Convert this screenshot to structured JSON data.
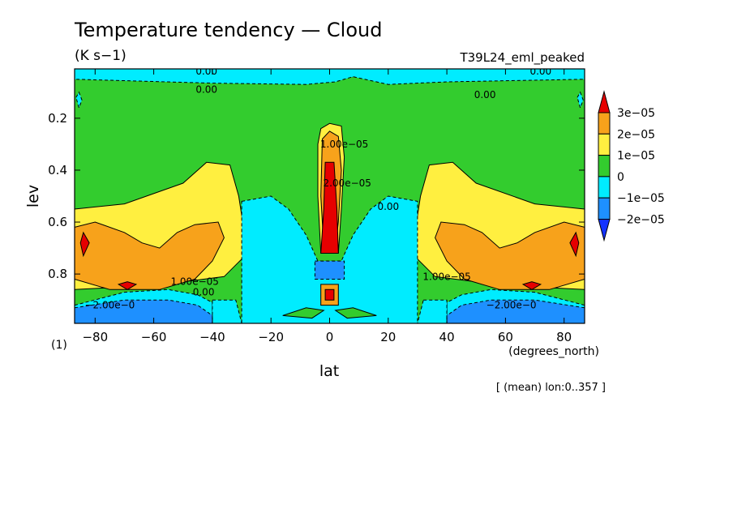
{
  "chart_data": {
    "type": "heatmap",
    "title": "Temperature tendency — Cloud",
    "units": "(K s−1)",
    "experiment": "T39L24_eml_peaked",
    "xlabel": "lat",
    "ylabel": "lev",
    "x_units": "(degrees_north)",
    "y_units": "(1)",
    "footnote": "[ (mean) lon:0..357 ]",
    "xlim": [
      -87,
      87
    ],
    "ylim": [
      0.01,
      0.99
    ],
    "y_inverted": true,
    "grid": false,
    "legend_position": "right",
    "x_ticks": [
      {
        "value": -80,
        "label": "−80"
      },
      {
        "value": -60,
        "label": "−60"
      },
      {
        "value": -40,
        "label": "−40"
      },
      {
        "value": -20,
        "label": "−20"
      },
      {
        "value": 0,
        "label": "0"
      },
      {
        "value": 20,
        "label": "20"
      },
      {
        "value": 40,
        "label": "40"
      },
      {
        "value": 60,
        "label": "60"
      },
      {
        "value": 80,
        "label": "80"
      }
    ],
    "y_ticks": [
      {
        "value": 0.2,
        "label": "0.2"
      },
      {
        "value": 0.4,
        "label": "0.4"
      },
      {
        "value": 0.6,
        "label": "0.6"
      },
      {
        "value": 0.8,
        "label": "0.8"
      }
    ],
    "levels": [
      {
        "label": "3e−05",
        "color": "#e60000"
      },
      {
        "label": "2e−05",
        "color": "#f7a21b"
      },
      {
        "label": "1e−05",
        "color": "#ffef40"
      },
      {
        "label": "0",
        "color": "#33cc2e"
      },
      {
        "label": "−1e−05",
        "color": "#00ecff"
      },
      {
        "label": "−2e−05",
        "color": "#1e90ff"
      }
    ],
    "legend_colors": [
      "#e60000",
      "#f7a21b",
      "#ffef40",
      "#33cc2e",
      "#00ecff",
      "#1e90ff",
      "#1433ff"
    ],
    "contour_labels": [
      {
        "text": "0.00",
        "lat": -42,
        "lev": 0.02
      },
      {
        "text": "0.00",
        "lat": 72,
        "lev": 0.02
      },
      {
        "text": "0.00",
        "lat": -42,
        "lev": 0.09
      },
      {
        "text": "0.00",
        "lat": 53,
        "lev": 0.11
      },
      {
        "text": "0.00",
        "lat": 20,
        "lev": 0.54
      },
      {
        "text": "1.00e−05",
        "lat": -46,
        "lev": 0.83
      },
      {
        "text": "1.00e−05",
        "lat": 40,
        "lev": 0.81
      },
      {
        "text": "0.00",
        "lat": -43,
        "lev": 0.87
      },
      {
        "text": "−2.00e−0",
        "lat": -75,
        "lev": 0.92
      },
      {
        "text": "−2.00e−0",
        "lat": 62,
        "lev": 0.92
      },
      {
        "text": "1.00e−05",
        "lat": 5,
        "lev": 0.3
      },
      {
        "text": "2.00e−05",
        "lat": 6,
        "lev": 0.45
      }
    ],
    "regions": [
      {
        "level": "0",
        "pts": [
          [
            -87,
            0.04
          ],
          [
            87,
            0.04
          ],
          [
            87,
            0.99
          ],
          [
            -87,
            0.99
          ]
        ]
      },
      {
        "level": "−1e−05",
        "pts": [
          [
            -87,
            0.01
          ],
          [
            87,
            0.01
          ],
          [
            87,
            0.05
          ],
          [
            40,
            0.06
          ],
          [
            20,
            0.07
          ],
          [
            8,
            0.04
          ],
          [
            2,
            0.06
          ],
          [
            -8,
            0.07
          ],
          [
            -40,
            0.065
          ],
          [
            -87,
            0.05
          ]
        ]
      },
      {
        "level": "1e−05",
        "pts": [
          [
            -87,
            0.55
          ],
          [
            -70,
            0.53
          ],
          [
            -50,
            0.45
          ],
          [
            -42,
            0.37
          ],
          [
            -34,
            0.38
          ],
          [
            -31,
            0.5
          ],
          [
            -28,
            0.72
          ],
          [
            -36,
            0.81
          ],
          [
            -50,
            0.83
          ],
          [
            -70,
            0.85
          ],
          [
            -87,
            0.86
          ]
        ]
      },
      {
        "level": "1e−05",
        "pts": [
          [
            87,
            0.55
          ],
          [
            70,
            0.53
          ],
          [
            50,
            0.45
          ],
          [
            42,
            0.37
          ],
          [
            34,
            0.38
          ],
          [
            31,
            0.5
          ],
          [
            28,
            0.72
          ],
          [
            36,
            0.81
          ],
          [
            50,
            0.83
          ],
          [
            70,
            0.85
          ],
          [
            87,
            0.86
          ]
        ]
      },
      {
        "level": "1e−05",
        "pts": [
          [
            -3,
            0.24
          ],
          [
            0,
            0.22
          ],
          [
            4,
            0.23
          ],
          [
            5,
            0.35
          ],
          [
            4,
            0.55
          ],
          [
            3,
            0.72
          ],
          [
            -3,
            0.72
          ],
          [
            -4,
            0.5
          ],
          [
            -4,
            0.3
          ]
        ]
      },
      {
        "level": "2e−05",
        "pts": [
          [
            -87,
            0.62
          ],
          [
            -80,
            0.6
          ],
          [
            -70,
            0.64
          ],
          [
            -64,
            0.68
          ],
          [
            -58,
            0.7
          ],
          [
            -52,
            0.64
          ],
          [
            -46,
            0.61
          ],
          [
            -38,
            0.6
          ],
          [
            -36,
            0.66
          ],
          [
            -40,
            0.75
          ],
          [
            -46,
            0.82
          ],
          [
            -58,
            0.86
          ],
          [
            -75,
            0.86
          ],
          [
            -87,
            0.82
          ]
        ]
      },
      {
        "level": "2e−05",
        "pts": [
          [
            87,
            0.62
          ],
          [
            80,
            0.6
          ],
          [
            70,
            0.64
          ],
          [
            64,
            0.68
          ],
          [
            58,
            0.7
          ],
          [
            52,
            0.64
          ],
          [
            46,
            0.61
          ],
          [
            38,
            0.6
          ],
          [
            36,
            0.66
          ],
          [
            40,
            0.75
          ],
          [
            46,
            0.82
          ],
          [
            58,
            0.86
          ],
          [
            75,
            0.86
          ],
          [
            87,
            0.82
          ]
        ]
      },
      {
        "level": "2e−05",
        "pts": [
          [
            -2.5,
            0.28
          ],
          [
            0,
            0.25
          ],
          [
            3,
            0.27
          ],
          [
            4,
            0.4
          ],
          [
            3,
            0.6
          ],
          [
            2,
            0.7
          ],
          [
            -2,
            0.7
          ],
          [
            -3,
            0.5
          ]
        ]
      },
      {
        "level": "3e−05",
        "pts": [
          [
            -1.5,
            0.37
          ],
          [
            1.5,
            0.37
          ],
          [
            2.5,
            0.55
          ],
          [
            3,
            0.72
          ],
          [
            -3,
            0.72
          ],
          [
            -2,
            0.55
          ]
        ]
      },
      {
        "level": "3e−05",
        "pts": [
          [
            -85,
            0.68
          ],
          [
            -84,
            0.64
          ],
          [
            -82,
            0.68
          ],
          [
            -84,
            0.73
          ]
        ]
      },
      {
        "level": "3e−05",
        "pts": [
          [
            85,
            0.68
          ],
          [
            84,
            0.64
          ],
          [
            82,
            0.68
          ],
          [
            84,
            0.73
          ]
        ]
      },
      {
        "level": "3e−05",
        "pts": [
          [
            -72,
            0.84
          ],
          [
            -69,
            0.83
          ],
          [
            -66,
            0.84
          ],
          [
            -69,
            0.86
          ]
        ]
      },
      {
        "level": "3e−05",
        "pts": [
          [
            66,
            0.84
          ],
          [
            69,
            0.83
          ],
          [
            72,
            0.84
          ],
          [
            69,
            0.86
          ]
        ]
      },
      {
        "level": "−1e−05",
        "pts": [
          [
            -87,
            0.92
          ],
          [
            -70,
            0.87
          ],
          [
            -55,
            0.86
          ],
          [
            -45,
            0.88
          ],
          [
            -40,
            0.91
          ],
          [
            -40,
            0.99
          ],
          [
            -87,
            0.99
          ]
        ]
      },
      {
        "level": "−1e−05",
        "pts": [
          [
            87,
            0.92
          ],
          [
            70,
            0.87
          ],
          [
            55,
            0.86
          ],
          [
            45,
            0.88
          ],
          [
            40,
            0.91
          ],
          [
            40,
            0.99
          ],
          [
            87,
            0.99
          ]
        ]
      },
      {
        "level": "−1e−05",
        "pts": [
          [
            -30,
            0.52
          ],
          [
            -20,
            0.5
          ],
          [
            -14,
            0.55
          ],
          [
            -8,
            0.65
          ],
          [
            -4,
            0.75
          ],
          [
            4,
            0.75
          ],
          [
            8,
            0.65
          ],
          [
            14,
            0.55
          ],
          [
            20,
            0.5
          ],
          [
            30,
            0.52
          ],
          [
            30,
            0.99
          ],
          [
            -30,
            0.99
          ]
        ]
      },
      {
        "level": "−1e−05",
        "pts": [
          [
            -40,
            0.9
          ],
          [
            -32,
            0.9
          ],
          [
            -30,
            0.99
          ],
          [
            -40,
            0.99
          ]
        ]
      },
      {
        "level": "−1e−05",
        "pts": [
          [
            32,
            0.9
          ],
          [
            40,
            0.9
          ],
          [
            40,
            0.99
          ],
          [
            30,
            0.99
          ]
        ]
      },
      {
        "level": "−2e−05",
        "pts": [
          [
            -87,
            0.93
          ],
          [
            -70,
            0.9
          ],
          [
            -55,
            0.9
          ],
          [
            -45,
            0.92
          ],
          [
            -40,
            0.96
          ],
          [
            -40,
            0.99
          ],
          [
            -87,
            0.99
          ]
        ]
      },
      {
        "level": "−2e−05",
        "pts": [
          [
            87,
            0.93
          ],
          [
            70,
            0.9
          ],
          [
            55,
            0.9
          ],
          [
            45,
            0.92
          ],
          [
            40,
            0.96
          ],
          [
            40,
            0.99
          ],
          [
            87,
            0.99
          ]
        ]
      },
      {
        "level": "−2e−05",
        "pts": [
          [
            -5,
            0.75
          ],
          [
            5,
            0.75
          ],
          [
            5,
            0.82
          ],
          [
            -5,
            0.82
          ]
        ]
      },
      {
        "level": "0",
        "pts": [
          [
            -16,
            0.96
          ],
          [
            -8,
            0.93
          ],
          [
            -2,
            0.94
          ],
          [
            -6,
            0.97
          ]
        ]
      },
      {
        "level": "0",
        "pts": [
          [
            2,
            0.94
          ],
          [
            8,
            0.93
          ],
          [
            16,
            0.96
          ],
          [
            6,
            0.97
          ]
        ]
      },
      {
        "level": "2e−05",
        "pts": [
          [
            -3,
            0.84
          ],
          [
            3,
            0.84
          ],
          [
            3,
            0.92
          ],
          [
            -3,
            0.92
          ]
        ]
      },
      {
        "level": "3e−05",
        "pts": [
          [
            -1.5,
            0.86
          ],
          [
            1.5,
            0.86
          ],
          [
            1.5,
            0.9
          ],
          [
            -1.5,
            0.9
          ]
        ]
      },
      {
        "level": "−1e−05",
        "pts": [
          [
            -86.5,
            0.12
          ],
          [
            -85.5,
            0.1
          ],
          [
            -84.5,
            0.13
          ],
          [
            -85.5,
            0.16
          ]
        ]
      },
      {
        "level": "−1e−05",
        "pts": [
          [
            84.5,
            0.12
          ],
          [
            85.5,
            0.1
          ],
          [
            86.5,
            0.13
          ],
          [
            85.5,
            0.16
          ]
        ]
      }
    ]
  }
}
